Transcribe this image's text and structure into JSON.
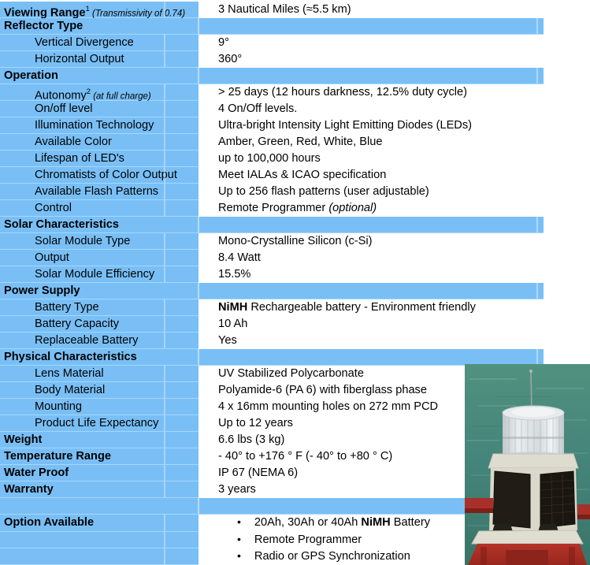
{
  "colors": {
    "table_blue": "#79BFF6",
    "grid_line": "#A6D7FB",
    "text": "#000000",
    "photo_sea": "#47877A",
    "photo_base_red": "#B23227",
    "photo_solar_panel": "#1E1912",
    "photo_body_white": "#DFDED1"
  },
  "icons": {
    "bullet": "•"
  },
  "photo": {
    "subject": "solar-led-marine-lantern-on-red-buoy"
  },
  "table": {
    "rows": [
      {
        "type": "item",
        "indent": false,
        "label": [
          {
            "text": "Viewing Range",
            "style": "b"
          },
          {
            "text": "1",
            "style": "sup"
          },
          {
            "text": " (Transmissivity of 0.74)",
            "style": "is"
          }
        ],
        "value": [
          {
            "text": "3 Nautical Miles (≈5.5 km)",
            "style": "n"
          }
        ]
      },
      {
        "type": "section",
        "label": [
          {
            "text": "Reflector Type",
            "style": "b"
          }
        ]
      },
      {
        "type": "item",
        "indent": true,
        "label": [
          {
            "text": "Vertical Divergence",
            "style": "n"
          }
        ],
        "value": [
          {
            "text": "9°",
            "style": "n"
          }
        ]
      },
      {
        "type": "item",
        "indent": true,
        "label": [
          {
            "text": "Horizontal Output",
            "style": "n"
          }
        ],
        "value": [
          {
            "text": "360°",
            "style": "n"
          }
        ]
      },
      {
        "type": "section",
        "label": [
          {
            "text": "Operation",
            "style": "b"
          }
        ]
      },
      {
        "type": "item",
        "indent": true,
        "label": [
          {
            "text": "Autonomy",
            "style": "n"
          },
          {
            "text": "2",
            "style": "sup"
          },
          {
            "text": " (at full charge)",
            "style": "is"
          }
        ],
        "value": [
          {
            "text": "> 25 days (12 hours darkness, 12.5% duty cycle)",
            "style": "n"
          }
        ]
      },
      {
        "type": "item",
        "indent": true,
        "label": [
          {
            "text": "On/off level",
            "style": "n"
          }
        ],
        "value": [
          {
            "text": "4 On/Off levels.",
            "style": "n"
          }
        ]
      },
      {
        "type": "item",
        "indent": true,
        "label": [
          {
            "text": "Illumination Technology",
            "style": "n"
          }
        ],
        "value": [
          {
            "text": "Ultra-bright Intensity Light Emitting Diodes (LEDs)",
            "style": "n"
          }
        ]
      },
      {
        "type": "item",
        "indent": true,
        "label": [
          {
            "text": "Available Color",
            "style": "n"
          }
        ],
        "value": [
          {
            "text": "Amber, Green, Red, White, Blue",
            "style": "n"
          }
        ]
      },
      {
        "type": "item",
        "indent": true,
        "label": [
          {
            "text": "Lifespan of LED's",
            "style": "n"
          }
        ],
        "value": [
          {
            "text": "up to 100,000 hours",
            "style": "n"
          }
        ]
      },
      {
        "type": "item",
        "indent": true,
        "label": [
          {
            "text": "Chromatists of Color Output",
            "style": "n"
          }
        ],
        "value": [
          {
            "text": "Meet IALAs & ICAO specification",
            "style": "n"
          }
        ]
      },
      {
        "type": "item",
        "indent": true,
        "label": [
          {
            "text": "Available Flash Patterns",
            "style": "n"
          }
        ],
        "value": [
          {
            "text": "Up to 256 flash patterns (user adjustable)",
            "style": "n"
          }
        ]
      },
      {
        "type": "item",
        "indent": true,
        "label": [
          {
            "text": "Control",
            "style": "n"
          }
        ],
        "value": [
          {
            "text": "Remote Programmer ",
            "style": "n"
          },
          {
            "text": "(optional)",
            "style": "i"
          }
        ]
      },
      {
        "type": "section",
        "label": [
          {
            "text": "Solar Characteristics",
            "style": "b"
          }
        ]
      },
      {
        "type": "item",
        "indent": true,
        "label": [
          {
            "text": "Solar Module Type",
            "style": "n"
          }
        ],
        "value": [
          {
            "text": "Mono-Crystalline Silicon (c-Si)",
            "style": "n"
          }
        ]
      },
      {
        "type": "item",
        "indent": true,
        "label": [
          {
            "text": "Output",
            "style": "n"
          }
        ],
        "value": [
          {
            "text": "8.4 Watt",
            "style": "n"
          }
        ]
      },
      {
        "type": "item",
        "indent": true,
        "label": [
          {
            "text": "Solar Module Efficiency",
            "style": "n"
          }
        ],
        "value": [
          {
            "text": "15.5%",
            "style": "n"
          }
        ]
      },
      {
        "type": "section",
        "label": [
          {
            "text": "Power Supply",
            "style": "b"
          }
        ]
      },
      {
        "type": "item",
        "indent": true,
        "label": [
          {
            "text": "Battery Type",
            "style": "n"
          }
        ],
        "value": [
          {
            "text": "NiMH",
            "style": "b"
          },
          {
            "text": " Rechargeable battery - Environment friendly",
            "style": "n"
          }
        ]
      },
      {
        "type": "item",
        "indent": true,
        "label": [
          {
            "text": "Battery Capacity",
            "style": "n"
          }
        ],
        "value": [
          {
            "text": "10 Ah",
            "style": "n"
          }
        ]
      },
      {
        "type": "item",
        "indent": true,
        "label": [
          {
            "text": "Replaceable Battery",
            "style": "n"
          }
        ],
        "value": [
          {
            "text": "Yes",
            "style": "n"
          }
        ]
      },
      {
        "type": "section",
        "label": [
          {
            "text": "Physical Characteristics",
            "style": "b"
          }
        ]
      },
      {
        "type": "item",
        "indent": true,
        "label": [
          {
            "text": "Lens Material",
            "style": "n"
          }
        ],
        "value": [
          {
            "text": "UV Stabilized Polycarbonate",
            "style": "n"
          }
        ]
      },
      {
        "type": "item",
        "indent": true,
        "label": [
          {
            "text": "Body Material",
            "style": "n"
          }
        ],
        "value": [
          {
            "text": "Polyamide-6 (PA 6) with fiberglass phase",
            "style": "n"
          }
        ]
      },
      {
        "type": "item",
        "indent": true,
        "label": [
          {
            "text": "Mounting",
            "style": "n"
          }
        ],
        "value": [
          {
            "text": "4 x 16mm mounting holes on 272 mm PCD",
            "style": "n"
          }
        ]
      },
      {
        "type": "item",
        "indent": true,
        "label": [
          {
            "text": "Product Life Expectancy",
            "style": "n"
          }
        ],
        "value": [
          {
            "text": "Up to 12 years",
            "style": "n"
          }
        ]
      },
      {
        "type": "item",
        "indent": false,
        "label": [
          {
            "text": "Weight",
            "style": "b"
          }
        ],
        "value": [
          {
            "text": "6.6 lbs (3 kg)",
            "style": "n"
          }
        ]
      },
      {
        "type": "item",
        "indent": false,
        "label": [
          {
            "text": "Temperature Range",
            "style": "b"
          }
        ],
        "value": [
          {
            "text": "- 40° to +176 ° F (- 40° to +80 ° C)",
            "style": "n"
          }
        ]
      },
      {
        "type": "item",
        "indent": false,
        "label": [
          {
            "text": "Water Proof",
            "style": "b"
          }
        ],
        "value": [
          {
            "text": "IP 67 (NEMA 6)",
            "style": "n"
          }
        ]
      },
      {
        "type": "item",
        "indent": false,
        "label": [
          {
            "text": "Warranty",
            "style": "b"
          }
        ],
        "value": [
          {
            "text": "3 years",
            "style": "n"
          }
        ]
      },
      {
        "type": "sep"
      },
      {
        "type": "item",
        "indent": false,
        "bullet": true,
        "label": [
          {
            "text": "Option Available",
            "style": "b"
          }
        ],
        "value": [
          {
            "text": "20Ah, 30Ah or 40Ah ",
            "style": "n"
          },
          {
            "text": "NiMH",
            "style": "b"
          },
          {
            "text": " Battery",
            "style": "n"
          }
        ]
      },
      {
        "type": "bullet",
        "value": [
          {
            "text": "Remote Programmer",
            "style": "n"
          }
        ]
      },
      {
        "type": "bullet",
        "value": [
          {
            "text": "Radio or GPS Synchronization",
            "style": "n"
          }
        ]
      }
    ]
  }
}
